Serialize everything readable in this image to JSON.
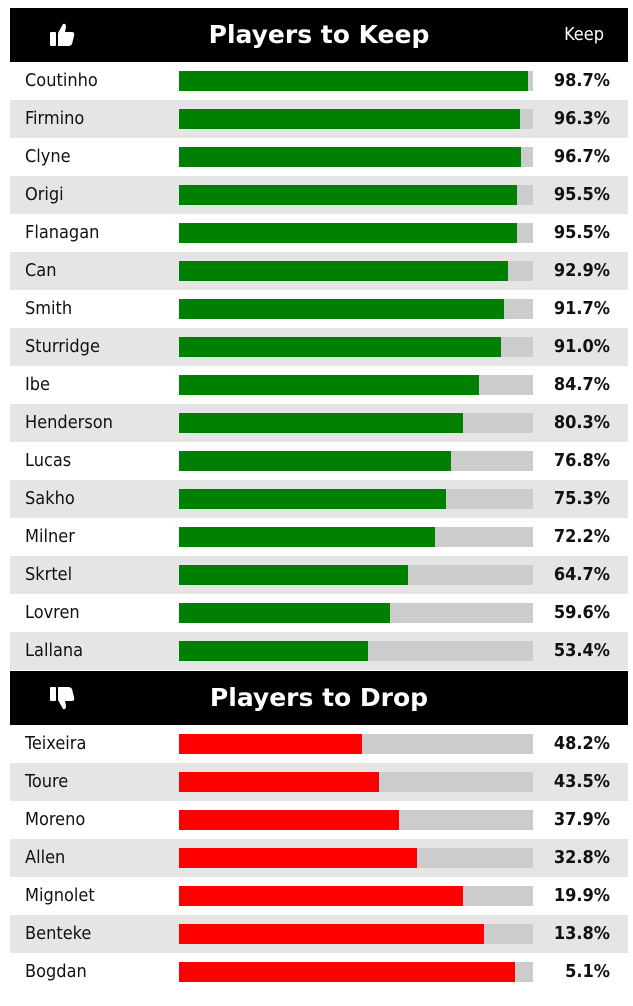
{
  "colors": {
    "keep": "#008000",
    "drop": "#ff0000",
    "track": "#cccccc",
    "header_bg": "#000000"
  },
  "keep_section": {
    "icon": "thumbs-up-icon",
    "title": "Players to Keep",
    "column_label": "Keep"
  },
  "drop_section": {
    "icon": "thumbs-down-icon",
    "title": "Players to Drop"
  },
  "chart_data": {
    "type": "bar",
    "orientation": "horizontal",
    "value_unit": "%",
    "xlim": [
      0,
      100
    ],
    "groups": [
      {
        "name": "Players to Keep",
        "color": "#008000",
        "bar_metric": "keep",
        "players": [
          {
            "name": "Coutinho",
            "keep": 98.7,
            "label": "98.7%"
          },
          {
            "name": "Firmino",
            "keep": 96.3,
            "label": "96.3%"
          },
          {
            "name": "Clyne",
            "keep": 96.7,
            "label": "96.7%"
          },
          {
            "name": "Origi",
            "keep": 95.5,
            "label": "95.5%"
          },
          {
            "name": "Flanagan",
            "keep": 95.5,
            "label": "95.5%"
          },
          {
            "name": "Can",
            "keep": 92.9,
            "label": "92.9%"
          },
          {
            "name": "Smith",
            "keep": 91.7,
            "label": "91.7%"
          },
          {
            "name": "Sturridge",
            "keep": 91.0,
            "label": "91.0%"
          },
          {
            "name": "Ibe",
            "keep": 84.7,
            "label": "84.7%"
          },
          {
            "name": "Henderson",
            "keep": 80.3,
            "label": "80.3%"
          },
          {
            "name": "Lucas",
            "keep": 76.8,
            "label": "76.8%"
          },
          {
            "name": "Sakho",
            "keep": 75.3,
            "label": "75.3%"
          },
          {
            "name": "Milner",
            "keep": 72.2,
            "label": "72.2%"
          },
          {
            "name": "Skrtel",
            "keep": 64.7,
            "label": "64.7%"
          },
          {
            "name": "Lovren",
            "keep": 59.6,
            "label": "59.6%"
          },
          {
            "name": "Lallana",
            "keep": 53.4,
            "label": "53.4%"
          }
        ]
      },
      {
        "name": "Players to Drop",
        "color": "#ff0000",
        "bar_metric": "drop",
        "players": [
          {
            "name": "Teixeira",
            "keep": 48.2,
            "label": "48.2%"
          },
          {
            "name": "Toure",
            "keep": 43.5,
            "label": "43.5%"
          },
          {
            "name": "Moreno",
            "keep": 37.9,
            "label": "37.9%"
          },
          {
            "name": "Allen",
            "keep": 32.8,
            "label": "32.8%"
          },
          {
            "name": "Mignolet",
            "keep": 19.9,
            "label": "19.9%"
          },
          {
            "name": "Benteke",
            "keep": 13.8,
            "label": "13.8%"
          },
          {
            "name": "Bogdan",
            "keep": 5.1,
            "label": "5.1%"
          }
        ]
      }
    ]
  }
}
